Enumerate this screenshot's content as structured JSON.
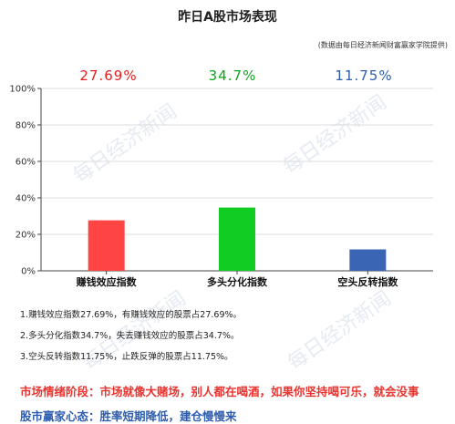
{
  "title": "昨日A股市场表现",
  "source": "(数据由每日经济新闻财富赢家学院提供)",
  "watermark": "每日经济新闻",
  "chart_data": {
    "type": "bar",
    "categories": [
      "赚钱效应指数",
      "多头分化指数",
      "空头反转指数"
    ],
    "values": [
      27.69,
      34.7,
      11.75
    ],
    "value_labels": [
      "27.69%",
      "34.7%",
      "11.75%"
    ],
    "ylim": [
      0,
      100
    ],
    "yticks": [
      "0%",
      "20%",
      "40%",
      "60%",
      "80%",
      "100%"
    ],
    "colors": [
      "#ff4444",
      "#11cc22",
      "#3a65b5"
    ],
    "label_colors": [
      "#e02020",
      "#0aa51a",
      "#2f5dad"
    ],
    "grid": true
  },
  "notes": [
    "1.赚钱效应指数27.69%，有赚钱效应的股票占27.69%。",
    "2.多头分化指数34.7%，失去赚钱效应的股票占34.7%。",
    "3.空头反转指数11.75%，止跌反弹的股票占11.75%。"
  ],
  "sentiment": "市场情绪阶段：市场就像大赌场，别人都在喝酒，如果你坚持喝可乐，就会没事",
  "mindset": "股市赢家心态：胜率短期降低，建仓慢慢来"
}
